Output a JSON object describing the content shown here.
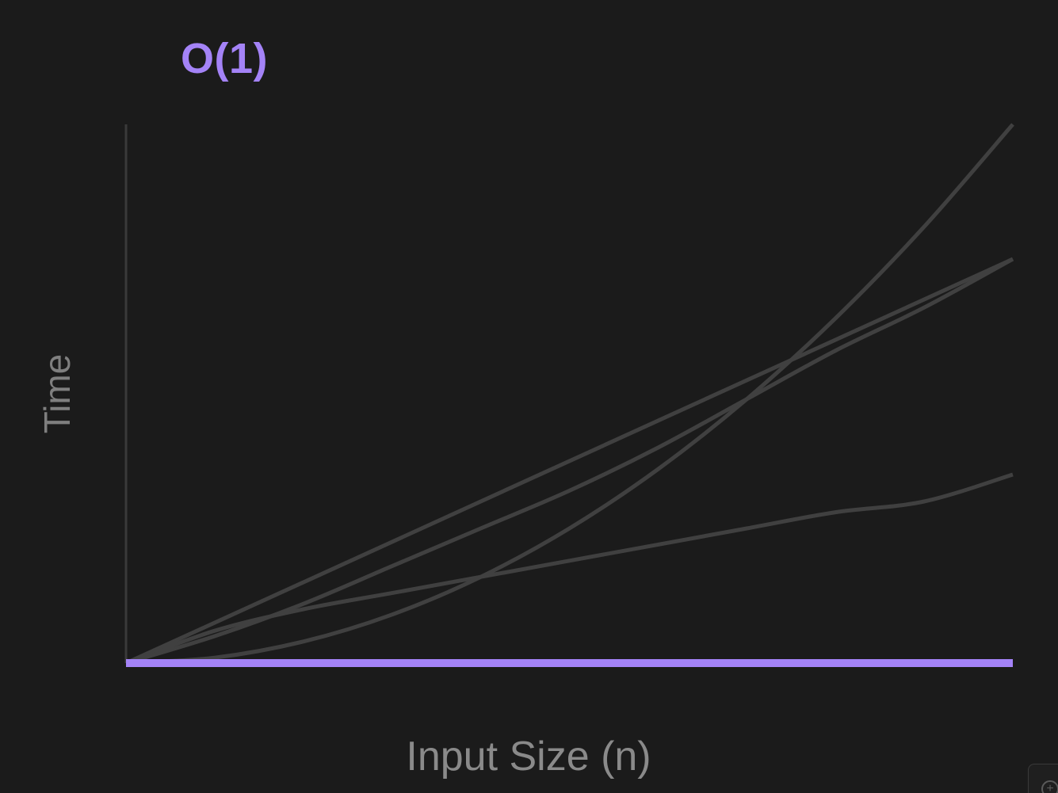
{
  "chart_data": {
    "type": "line",
    "title": "O(1)",
    "xlabel": "Input Size (n)",
    "ylabel": "Time",
    "xlim": [
      0,
      1
    ],
    "ylim": [
      0,
      1
    ],
    "grid": false,
    "legend": "none",
    "series": [
      {
        "key": "constant",
        "x": [
          0,
          1
        ],
        "y": [
          0,
          0
        ],
        "highlighted": true
      },
      {
        "key": "logarithmic",
        "x": [
          0,
          0.1,
          0.2,
          0.3,
          0.4,
          0.5,
          0.6,
          0.7,
          0.8,
          0.9,
          1
        ],
        "y": [
          0,
          0.06,
          0.1,
          0.13,
          0.16,
          0.19,
          0.22,
          0.25,
          0.28,
          0.3,
          0.35
        ]
      },
      {
        "key": "linear",
        "x": [
          0,
          1
        ],
        "y": [
          0,
          0.75
        ]
      },
      {
        "key": "linearithmic",
        "x": [
          0,
          0.1,
          0.2,
          0.3,
          0.4,
          0.5,
          0.6,
          0.7,
          0.8,
          0.9,
          1
        ],
        "y": [
          0,
          0.05,
          0.11,
          0.18,
          0.25,
          0.32,
          0.4,
          0.49,
          0.58,
          0.66,
          0.75
        ]
      },
      {
        "key": "quadratic",
        "x": [
          0,
          0.1,
          0.2,
          0.3,
          0.4,
          0.5,
          0.6,
          0.7,
          0.8,
          0.9,
          1
        ],
        "y": [
          0,
          0.01,
          0.04,
          0.09,
          0.16,
          0.25,
          0.36,
          0.49,
          0.64,
          0.81,
          1
        ]
      }
    ]
  },
  "colors": {
    "background": "#1b1b1b",
    "highlight": "#a483f7",
    "curve": "#404040",
    "axis": "#3a3a3a"
  },
  "icons": {
    "corner_widget": "zoom-icon"
  }
}
